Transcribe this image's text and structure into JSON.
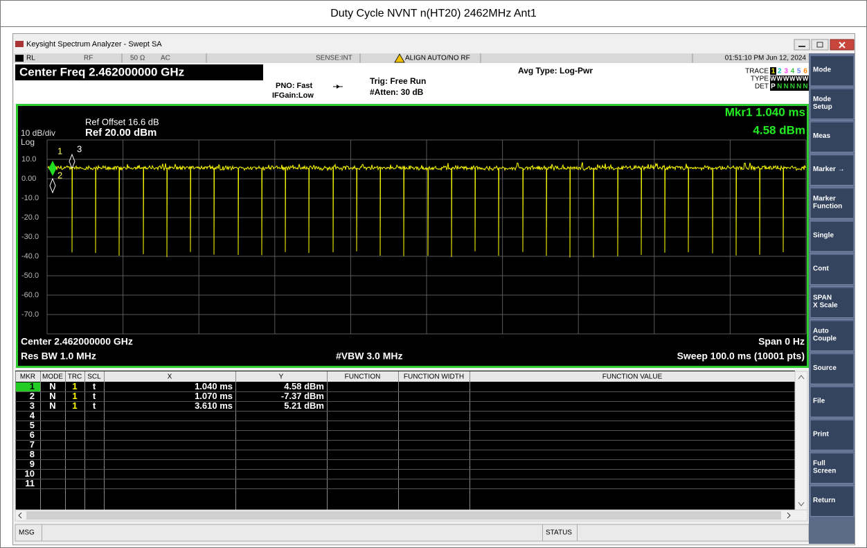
{
  "page_title": "Duty Cycle NVNT n(HT20) 2462MHz Ant1",
  "window": {
    "title": "Keysight Spectrum Analyzer - Swept SA"
  },
  "status_line": {
    "rl": "RL",
    "rf": "RF",
    "impedance": "50 Ω",
    "coupling": "AC",
    "sense": "SENSE:INT",
    "align": "ALIGN AUTO/NO RF",
    "datetime": "01:51:10 PM Jun 12, 2024"
  },
  "header": {
    "center_freq": "Center Freq 2.462000000 GHz",
    "pno": "PNO: Fast",
    "ifgain": "IFGain:Low",
    "trig": "Trig: Free Run",
    "atten": "#Atten: 30 dB",
    "avg_type": "Avg Type: Log-Pwr",
    "trace_label": "TRACE",
    "trace_numbers": [
      "1",
      "2",
      "3",
      "4",
      "5",
      "6"
    ],
    "type_label": "TYPE",
    "type_value": [
      "W",
      "W",
      "W",
      "W",
      "W",
      "W"
    ],
    "det_label": "DET",
    "det_value": [
      "P",
      "N",
      "N",
      "N",
      "N",
      "N"
    ]
  },
  "plot": {
    "ref_offset": "Ref Offset 16.6 dB",
    "ref": "Ref 20.00 dBm",
    "scale": "10 dB/div",
    "log": "Log",
    "marker_readout": "Mkr1 1.040 ms",
    "marker_value": "4.58 dBm",
    "y_labels": [
      "10.0",
      "0.00",
      "-10.0",
      "-20.0",
      "-30.0",
      "-40.0",
      "-50.0",
      "-60.0",
      "-70.0"
    ],
    "center": "Center 2.462000000 GHz",
    "span": "Span 0 Hz",
    "rbw": "Res BW 1.0 MHz",
    "vbw": "#VBW 3.0 MHz",
    "sweep": "Sweep  100.0 ms (10001 pts)",
    "markers": [
      "1",
      "2",
      "3"
    ]
  },
  "marker_table": {
    "columns": [
      "MKR",
      "MODE",
      "TRC",
      "SCL",
      "X",
      "Y",
      "FUNCTION",
      "FUNCTION WIDTH",
      "FUNCTION VALUE"
    ],
    "rows": [
      [
        "1",
        "N",
        "1",
        "t",
        "1.040 ms",
        "4.58 dBm"
      ],
      [
        "2",
        "N",
        "1",
        "t",
        "1.070 ms",
        "-7.37 dBm"
      ],
      [
        "3",
        "N",
        "1",
        "t",
        "3.610 ms",
        "5.21 dBm"
      ],
      [
        "4"
      ],
      [
        "5"
      ],
      [
        "6"
      ],
      [
        "7"
      ],
      [
        "8"
      ],
      [
        "9"
      ],
      [
        "10"
      ],
      [
        "11"
      ]
    ]
  },
  "status_bar": {
    "msg": "MSG",
    "status": "STATUS"
  },
  "softkeys": [
    [
      "Mode"
    ],
    [
      "Mode",
      "Setup"
    ],
    [
      "Meas"
    ],
    [
      "Marker →"
    ],
    [
      "Marker",
      "Function"
    ],
    [
      "Single"
    ],
    [
      "Cont"
    ],
    [
      "SPAN",
      "X Scale"
    ],
    [
      "Auto",
      "Couple"
    ],
    [
      "Source"
    ],
    [
      "File"
    ],
    [
      "Print"
    ],
    [
      "Full",
      "Screen"
    ],
    [
      "Return"
    ]
  ]
}
